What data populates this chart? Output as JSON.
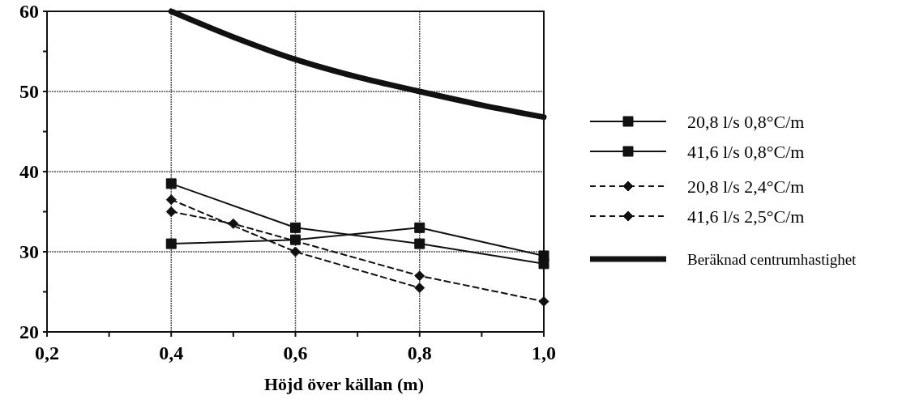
{
  "chart_data": {
    "type": "line",
    "xlabel": "Höjd över källan (m)",
    "xlim": [
      0.2,
      1.0
    ],
    "xticks": [
      {
        "value": 0.2,
        "label": "0,2"
      },
      {
        "value": 0.3,
        "label": null
      },
      {
        "value": 0.4,
        "label": "0,4"
      },
      {
        "value": 0.5,
        "label": null
      },
      {
        "value": 0.6,
        "label": "0,6"
      },
      {
        "value": 0.7,
        "label": null
      },
      {
        "value": 0.8,
        "label": "0,8"
      },
      {
        "value": 0.9,
        "label": null
      },
      {
        "value": 1.0,
        "label": "1,0"
      }
    ],
    "ylim": [
      20,
      60
    ],
    "yticks": [
      20,
      {
        "value": 25,
        "label": null
      },
      30,
      {
        "value": 35,
        "label": null
      },
      40,
      {
        "value": 45,
        "label": null
      },
      50,
      {
        "value": 55,
        "label": null
      },
      60
    ],
    "grid": true,
    "legend": "right",
    "series": [
      {
        "name": "20,8 l/s  0,8°C/m",
        "color": "#111111",
        "marker": "square",
        "line_style": "solid",
        "x": [
          0.4,
          0.6,
          0.8,
          1.0
        ],
        "values": [
          38.5,
          33,
          31,
          28.5
        ]
      },
      {
        "name": "41,6 l/s  0,8°C/m",
        "color": "#111111",
        "marker": "square",
        "line_style": "solid",
        "x": [
          0.4,
          0.6,
          0.8,
          1.0
        ],
        "values": [
          31,
          31.5,
          33,
          29.5
        ]
      },
      {
        "name": "20,8 l/s  2,4°C/m",
        "color": "#111111",
        "marker": "diamond",
        "line_style": "dashed",
        "x": [
          0.4,
          0.6,
          0.8
        ],
        "values": [
          36.5,
          30,
          25.5
        ]
      },
      {
        "name": "41,6 l/s  2,5°C/m",
        "color": "#111111",
        "marker": "diamond",
        "line_style": "dashed",
        "x": [
          0.4,
          0.5,
          0.8,
          1.0
        ],
        "values": [
          35,
          33.5,
          27,
          23.8
        ]
      },
      {
        "name": "Beräknad centrumhastighet",
        "color": "#111111",
        "marker": "none",
        "line_style": "solid",
        "x": [
          0.4,
          0.5,
          0.6,
          0.7,
          0.8,
          0.9,
          1.0
        ],
        "values": [
          60,
          56.8,
          54,
          51.8,
          50,
          48.3,
          46.8
        ]
      }
    ]
  }
}
